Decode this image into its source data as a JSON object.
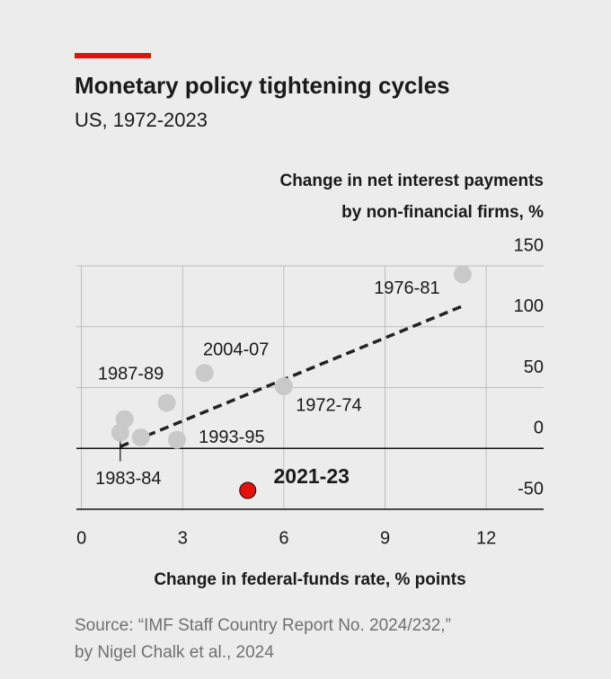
{
  "chart_data": {
    "type": "scatter",
    "title": "Monetary policy tightening cycles",
    "subtitle": "US, 1972-2023",
    "y_label": [
      "Change in net interest payments",
      "by non-financial firms, %"
    ],
    "x_label": "Change in federal-funds rate, % points",
    "source": [
      "Source: “IMF Staff Country Report No. 2024/232,”",
      "by Nigel Chalk et al., 2024"
    ],
    "xlim": [
      -0.15,
      13.7
    ],
    "ylim": [
      -50,
      150
    ],
    "xticks": [
      0,
      3,
      6,
      9,
      12
    ],
    "yticks": [
      -50,
      0,
      50,
      100,
      150
    ],
    "grid": true,
    "series": [
      {
        "color": "#c9c9c9",
        "x": [
          11.3,
          3.65,
          6.0,
          2.53,
          1.28,
          1.15,
          1.76,
          2.83
        ],
        "values": [
          143,
          62,
          51,
          37.5,
          24,
          13,
          9,
          7
        ],
        "labels": [
          "1976-81",
          "2004-07",
          "1972-74",
          "1987-89",
          null,
          "1983-84",
          null,
          "1993-95"
        ]
      },
      {
        "color": "#e3120b",
        "x": [
          4.93
        ],
        "values": [
          -34.5
        ],
        "labels": [
          "2021-23"
        ]
      }
    ],
    "trend": {
      "x": [
        1.15,
        11.3
      ],
      "values": [
        1.5,
        117
      ],
      "color": "#222222"
    }
  }
}
